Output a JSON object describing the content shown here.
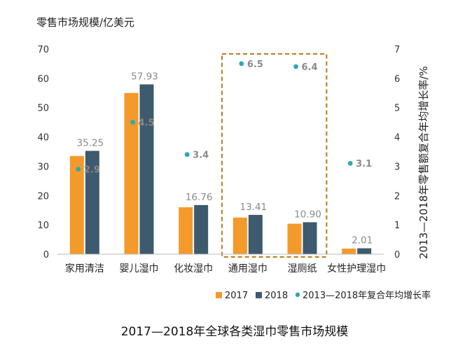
{
  "chart_data": {
    "type": "bar",
    "title": "2017—2018年全球各类湿巾零售市场规模",
    "ylabel": "零售市场规模/亿美元",
    "y2label": "2013—2018年零售额复合年均增长率/%",
    "ylim": [
      0,
      70
    ],
    "y2lim": [
      0,
      7
    ],
    "yticks": [
      "0",
      "10",
      "20",
      "30",
      "40",
      "50",
      "60",
      "70"
    ],
    "y2ticks": [
      "0",
      "1",
      "2",
      "3",
      "4",
      "5",
      "6",
      "7"
    ],
    "categories": [
      "家用清洁",
      "婴儿湿巾",
      "化妆湿巾",
      "通用湿巾",
      "湿厕纸",
      "女性护理湿巾"
    ],
    "series": [
      {
        "name": "2017",
        "color": "#F39A2B",
        "values": [
          33.5,
          55,
          16,
          12.5,
          10.4,
          1.9
        ]
      },
      {
        "name": "2018",
        "color": "#3D5A6E",
        "values": [
          35.25,
          57.93,
          16.76,
          13.41,
          10.9,
          2.01
        ]
      },
      {
        "name": "2013—2018年复合年均增长率",
        "color": "#2AA7B8",
        "axis": "right",
        "type": "scatter",
        "values": [
          2.9,
          4.5,
          3.4,
          6.5,
          6.4,
          3.1
        ]
      }
    ],
    "value_labels_2018": [
      "35.25",
      "57.93",
      "16.76",
      "13.41",
      "10.90",
      "2.01"
    ],
    "rate_labels": [
      "2.9",
      "4.5",
      "3.4",
      "6.5",
      "6.4",
      "3.1"
    ],
    "highlight_box": [
      "通用湿巾",
      "湿厕纸"
    ],
    "legend": [
      "2017",
      "2018",
      "2013—2018年复合年均增长率"
    ]
  }
}
